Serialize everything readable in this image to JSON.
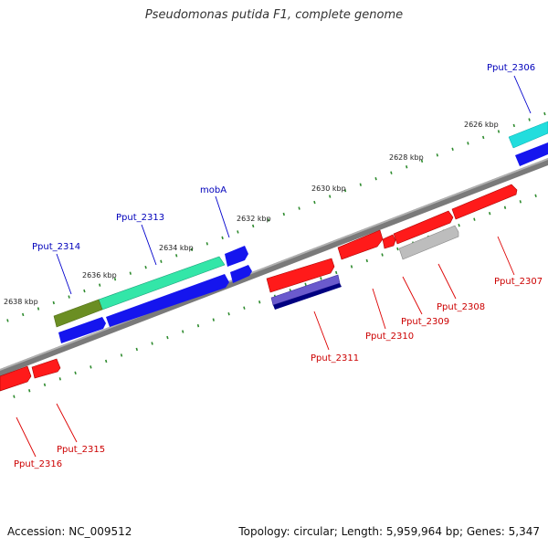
{
  "title": "Pseudomonas putida F1, complete genome",
  "footer": {
    "accession": "Accession: NC_009512",
    "summary": "Topology: circular; Length: 5,959,964 bp; Genes: 5,347"
  },
  "colors": {
    "backbone": "#7a7a7a",
    "tick": "#2e8b2e",
    "gene_red": "#ff1a1a",
    "gene_blue": "#1515ee",
    "gene_cyan": "#22dddd",
    "gene_teal": "#33e6a8",
    "gene_olive": "#6b8e23",
    "gene_gray": "#bdbdbd",
    "gene_slate": "#6a5acd",
    "gene_navy": "#000080"
  },
  "scale_labels": [
    "2626 kbp",
    "2628 kbp",
    "2630 kbp",
    "2632 kbp",
    "2634 kbp",
    "2636 kbp",
    "2638 kbp"
  ],
  "gene_labels": {
    "forward": [
      "Pput_2306",
      "mobA",
      "Pput_2313",
      "Pput_2314"
    ],
    "reverse": [
      "Pput_2307",
      "Pput_2308",
      "Pput_2309",
      "Pput_2310",
      "Pput_2311",
      "Pput_2315",
      "Pput_2316"
    ]
  }
}
